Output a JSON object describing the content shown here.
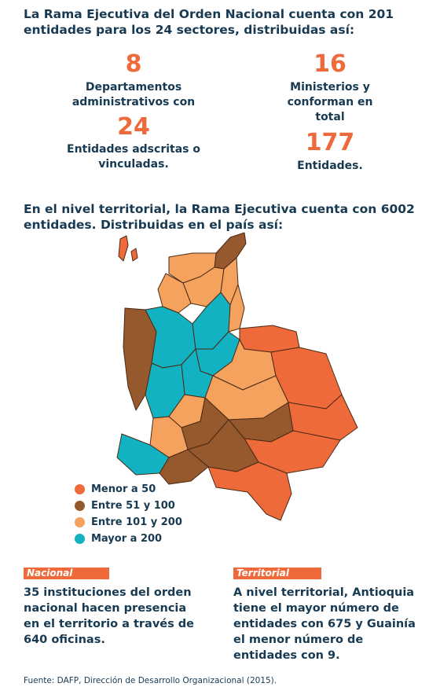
{
  "intro": "La Rama Ejecutiva del Orden Nacional cuenta con 201 entidades para los 24 sectores, distribuidas así:",
  "stats": [
    {
      "number": "8",
      "label": "Departamentos administrativos con"
    },
    {
      "number": "24",
      "label": "Entidades adscritas o vinculadas."
    },
    {
      "number": "16",
      "label": "Ministerios y conforman en total"
    },
    {
      "number": "177",
      "label": "Entidades."
    }
  ],
  "territorial_intro": "En el nivel territorial, la Rama Ejecutiva cuenta con 6002 entidades. Distribuidas en el país así:",
  "legend": [
    {
      "label": "Menor a 50",
      "color": "#ef6a3a"
    },
    {
      "label": "Entre 51 y 100",
      "color": "#95592d"
    },
    {
      "label": "Entre 101 y 200",
      "color": "#f5a25f"
    },
    {
      "label": "Mayor a 200",
      "color": "#13b2c2"
    }
  ],
  "nacional": {
    "tag": "Nacional",
    "text": "35 instituciones del orden nacional hacen presencia en el territorio a través de 640 oficinas."
  },
  "territorial": {
    "tag": "Territorial",
    "text": "A nivel territorial, Antioquia tiene el mayor número de entidades con 675 y Guainía el menor número de entidades con 9."
  },
  "source": "Fuente: DAFP, Dirección de Desarrollo Organizacional (2015)."
}
